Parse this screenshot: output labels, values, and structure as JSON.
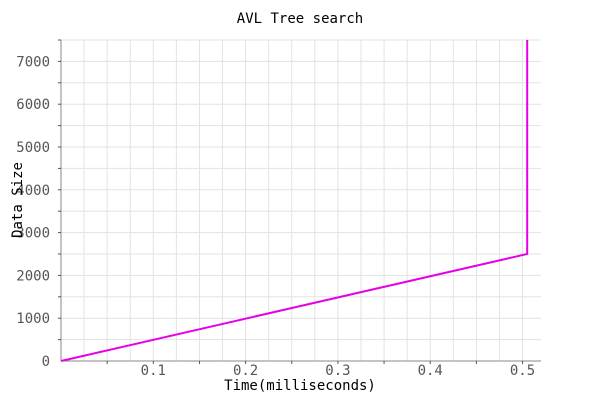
{
  "chart_data": {
    "type": "line",
    "title": "AVL Tree search",
    "xlabel": "Time(milliseconds)",
    "ylabel": "Data Size",
    "xlim": [
      0.0,
      0.52
    ],
    "ylim": [
      0,
      7500
    ],
    "xticks": [
      0.1,
      0.2,
      0.3,
      0.4,
      0.5
    ],
    "yticks": [
      0,
      1000,
      2000,
      3000,
      4000,
      5000,
      6000,
      7000
    ],
    "xtick_labels": [
      "0.1",
      "0.2",
      "0.3",
      "0.4",
      "0.5"
    ],
    "ytick_labels": [
      "0",
      "1000",
      "2000",
      "3000",
      "4000",
      "5000",
      "6000",
      "7000"
    ],
    "grid": true,
    "series": [
      {
        "color": "#e600e6",
        "points": [
          {
            "x": 0.0,
            "y": 0
          },
          {
            "x": 0.505,
            "y": 2500
          },
          {
            "x": 0.505,
            "y": 7500
          }
        ]
      }
    ]
  }
}
